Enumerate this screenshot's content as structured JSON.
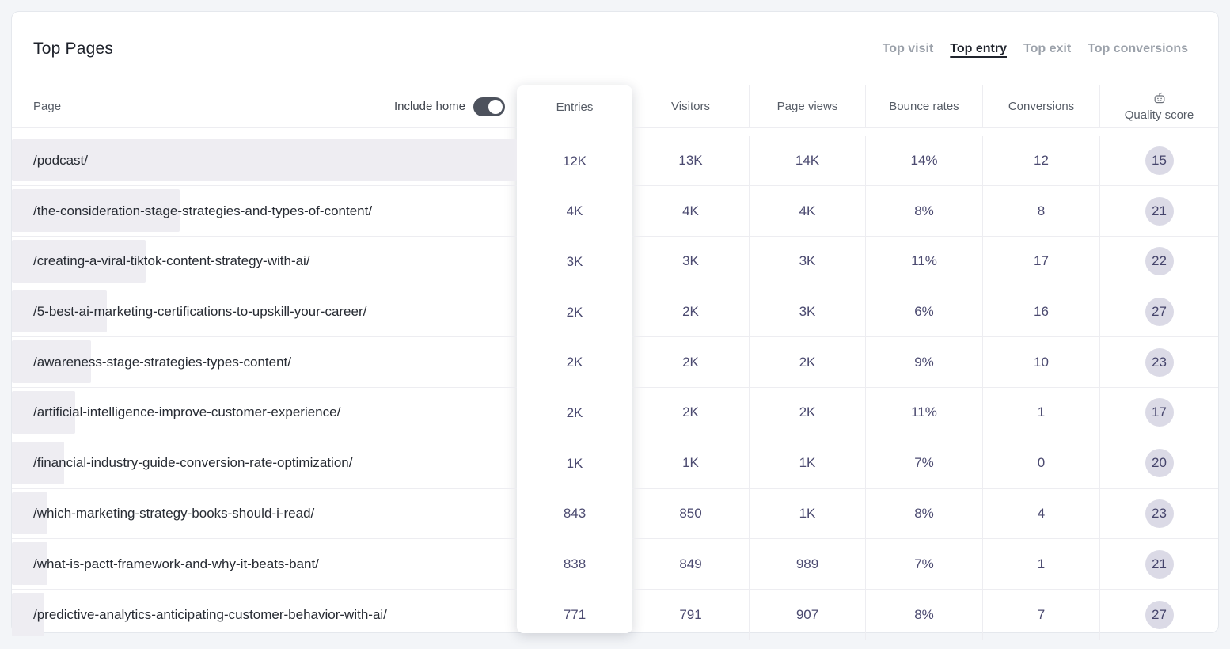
{
  "title": "Top Pages",
  "tabs": [
    {
      "label": "Top visit",
      "active": false
    },
    {
      "label": "Top entry",
      "active": true
    },
    {
      "label": "Top exit",
      "active": false
    },
    {
      "label": "Top conversions",
      "active": false
    }
  ],
  "include_home": {
    "label": "Include home",
    "state": "on"
  },
  "columns": {
    "page": "Page",
    "entries": "Entries",
    "visitors": "Visitors",
    "page_views": "Page views",
    "bounce_rates": "Bounce rates",
    "conversions": "Conversions",
    "quality_score": "Quality score",
    "quality_icon": "robot-icon"
  },
  "colors": {
    "background": "#f3f5f8",
    "card": "#ffffff",
    "row_bar": "#eeedf2",
    "badge_bg": "#dbdae6",
    "number_text": "#4b4a70",
    "active_tab": "#20242d",
    "inactive_tab": "#9ba1aa",
    "toggle_on": "#4d525d"
  },
  "rows": [
    {
      "page": "/podcast/",
      "entries": "12K",
      "visitors": "13K",
      "page_views": "14K",
      "bounce_rate": "14%",
      "conversions": "12",
      "quality_score": "15",
      "bar_pct": 100
    },
    {
      "page": "/the-consideration-stage-strategies-and-types-of-content/",
      "entries": "4K",
      "visitors": "4K",
      "page_views": "4K",
      "bounce_rate": "8%",
      "conversions": "8",
      "quality_score": "21",
      "bar_pct": 33.2
    },
    {
      "page": "/creating-a-viral-tiktok-content-strategy-with-ai/",
      "entries": "3K",
      "visitors": "3K",
      "page_views": "3K",
      "bounce_rate": "11%",
      "conversions": "17",
      "quality_score": "22",
      "bar_pct": 26.5
    },
    {
      "page": "/5-best-ai-marketing-certifications-to-upskill-your-career/",
      "entries": "2K",
      "visitors": "2K",
      "page_views": "3K",
      "bounce_rate": "6%",
      "conversions": "16",
      "quality_score": "27",
      "bar_pct": 18.8
    },
    {
      "page": "/awareness-stage-strategies-types-content/",
      "entries": "2K",
      "visitors": "2K",
      "page_views": "2K",
      "bounce_rate": "9%",
      "conversions": "10",
      "quality_score": "23",
      "bar_pct": 15.7
    },
    {
      "page": "/artificial-intelligence-improve-customer-experience/",
      "entries": "2K",
      "visitors": "2K",
      "page_views": "2K",
      "bounce_rate": "11%",
      "conversions": "1",
      "quality_score": "17",
      "bar_pct": 12.6
    },
    {
      "page": "/financial-industry-guide-conversion-rate-optimization/",
      "entries": "1K",
      "visitors": "1K",
      "page_views": "1K",
      "bounce_rate": "7%",
      "conversions": "0",
      "quality_score": "20",
      "bar_pct": 10.3
    },
    {
      "page": "/which-marketing-strategy-books-should-i-read/",
      "entries": "843",
      "visitors": "850",
      "page_views": "1K",
      "bounce_rate": "8%",
      "conversions": "4",
      "quality_score": "23",
      "bar_pct": 7.1
    },
    {
      "page": "/what-is-pactt-framework-and-why-it-beats-bant/",
      "entries": "838",
      "visitors": "849",
      "page_views": "989",
      "bounce_rate": "7%",
      "conversions": "1",
      "quality_score": "21",
      "bar_pct": 7.0
    },
    {
      "page": "/predictive-analytics-anticipating-customer-behavior-with-ai/",
      "entries": "771",
      "visitors": "791",
      "page_views": "907",
      "bounce_rate": "8%",
      "conversions": "7",
      "quality_score": "27",
      "bar_pct": 6.4
    }
  ]
}
